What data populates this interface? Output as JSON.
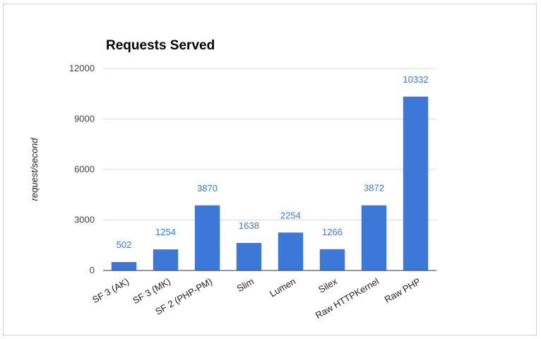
{
  "chart_data": {
    "type": "bar",
    "title": "Requests Served",
    "xlabel": "",
    "ylabel": "request/second",
    "categories": [
      "SF 3 (AK)",
      "SF 3 (MK)",
      "SF 2 (PHP-PM)",
      "Slim",
      "Lumen",
      "Silex",
      "Raw HTTPKernel",
      "Raw PHP"
    ],
    "values": [
      502,
      1254,
      3870,
      1638,
      2254,
      1266,
      3872,
      10332
    ],
    "data_labels": [
      "502",
      "1254",
      "3870",
      "1638",
      "2254",
      "1266",
      "3872",
      "10332"
    ],
    "yticks": [
      0,
      3000,
      6000,
      9000,
      12000
    ],
    "ytick_labels": [
      "0",
      "3000",
      "6000",
      "9000",
      "12000"
    ],
    "ylim": [
      0,
      12000
    ],
    "grid": true,
    "legend": "none",
    "colors": {
      "bar": "#3c78d8",
      "data_label": "#3c78d8",
      "grid": "#d9d9d9",
      "axis": "#333333"
    }
  }
}
